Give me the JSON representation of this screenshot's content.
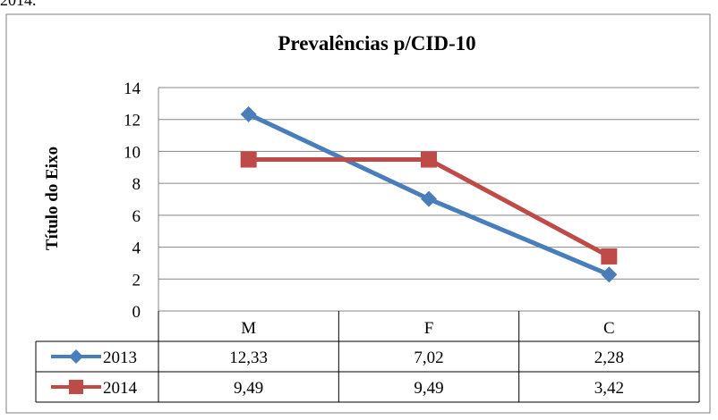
{
  "caption_fragment": "2014.",
  "chart_data": {
    "type": "line",
    "title": "Prevalências p/CID-10",
    "xlabel": "",
    "ylabel": "Título do Eixo",
    "categories": [
      "M",
      "F",
      "C"
    ],
    "ylim": [
      0,
      14
    ],
    "yticks": [
      0,
      2,
      4,
      6,
      8,
      10,
      12,
      14
    ],
    "grid": true,
    "legend": "data-table",
    "series": [
      {
        "name": "2013",
        "values": [
          12.33,
          7.02,
          2.28
        ],
        "labels": [
          "12,33",
          "7,02",
          "2,28"
        ],
        "color": "#4a7ebb",
        "marker": "diamond"
      },
      {
        "name": "2014",
        "values": [
          9.49,
          9.49,
          3.42
        ],
        "labels": [
          "9,49",
          "9,49",
          "3,42"
        ],
        "color": "#be4b48",
        "marker": "square"
      }
    ]
  }
}
